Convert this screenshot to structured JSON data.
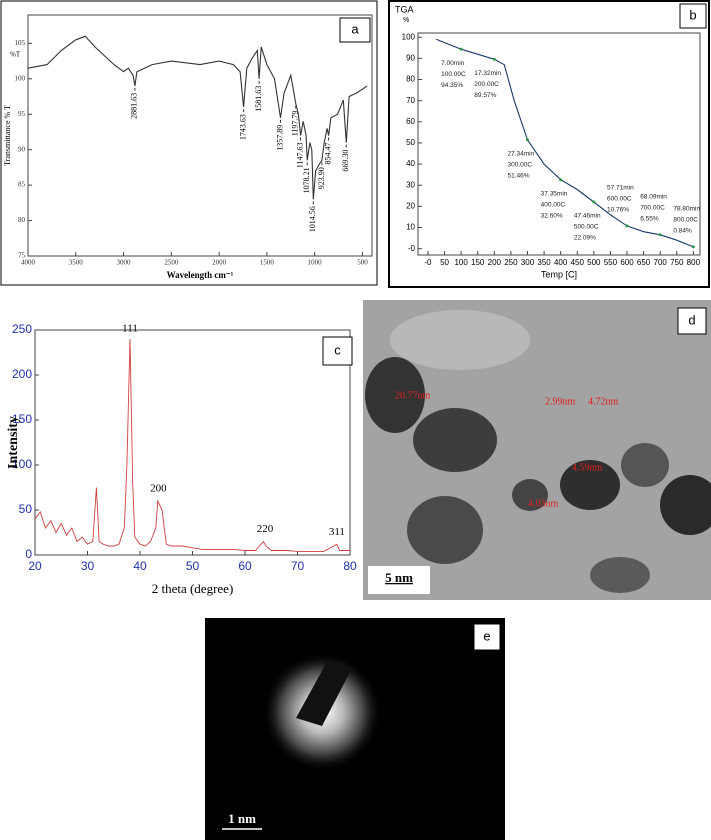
{
  "chart_data": [
    {
      "type": "line",
      "panel_label": "a",
      "y_unit": "%T",
      "x_label": "Wavelength cm⁻¹",
      "y_label": "Transmittance % T",
      "xlim": [
        4000,
        400
      ],
      "xticks": [
        4000,
        3500,
        3000,
        2500,
        2000,
        1500,
        1000,
        500
      ],
      "ylim": [
        75,
        109
      ],
      "yticks": [
        75,
        80,
        85,
        90,
        95,
        100,
        105
      ],
      "color": "#333333",
      "x": [
        4000,
        3800,
        3650,
        3500,
        3400,
        3300,
        3100,
        3000,
        2950,
        2900,
        2881.63,
        2860,
        2700,
        2500,
        2200,
        2000,
        1850,
        1780,
        1743.63,
        1710,
        1650,
        1600,
        1581.63,
        1560,
        1500,
        1420,
        1357.89,
        1320,
        1250,
        1197.79,
        1170,
        1147.63,
        1120,
        1090,
        1078.21,
        1050,
        1030,
        1014.56,
        990,
        950,
        923.9,
        900,
        870,
        854.47,
        830,
        760,
        700,
        669.3,
        640,
        560,
        450
      ],
      "values": [
        101.5,
        102,
        104,
        105.5,
        106,
        104.5,
        102,
        101,
        101.5,
        100.5,
        99,
        101,
        102,
        102.5,
        102,
        102.5,
        102,
        101,
        96,
        101.5,
        103,
        104,
        100,
        104.5,
        102,
        100,
        94.5,
        98,
        100.5,
        96.5,
        95,
        92,
        94,
        92,
        88.5,
        91,
        90,
        83,
        87,
        88,
        88.5,
        91,
        93,
        92,
        94.5,
        95,
        97,
        91,
        97.5,
        98,
        99
      ],
      "peaks": [
        {
          "value": 2881.63,
          "label": "2881.63"
        },
        {
          "value": 1743.63,
          "label": "1743.63"
        },
        {
          "value": 1581.63,
          "label": "1581.63"
        },
        {
          "value": 1357.89,
          "label": "1357.89"
        },
        {
          "value": 1197.79,
          "label": "1197.79"
        },
        {
          "value": 1147.63,
          "label": "1147.63"
        },
        {
          "value": 1078.21,
          "label": "1078.21"
        },
        {
          "value": 1014.56,
          "label": "1014.56"
        },
        {
          "value": 923.9,
          "label": "923.90"
        },
        {
          "value": 854.47,
          "label": "854.47"
        },
        {
          "value": 669.3,
          "label": "669.30"
        }
      ]
    },
    {
      "type": "line",
      "panel_label": "b",
      "title": "TGA",
      "y_unit": "%",
      "x_label": "Temp [C]",
      "xlim": [
        -30,
        820
      ],
      "xticks": [
        {
          "value": 0,
          "label": "-0"
        },
        50,
        100,
        150,
        200,
        250,
        300,
        350,
        400,
        450,
        500,
        550,
        600,
        650,
        700,
        750,
        800
      ],
      "ylim": [
        -3,
        102
      ],
      "yticks": [
        {
          "value": 0,
          "label": "-0"
        },
        10,
        20,
        30,
        40,
        50,
        60,
        70,
        80,
        90,
        100
      ],
      "color": "#1a3a6a",
      "x": [
        25,
        100,
        200,
        230,
        260,
        300,
        350,
        400,
        450,
        500,
        550,
        600,
        650,
        700,
        750,
        800
      ],
      "values": [
        99,
        94.35,
        89.57,
        87,
        70,
        51.46,
        40,
        32.6,
        28,
        22.09,
        16,
        10.76,
        8,
        6.55,
        4,
        0.84
      ],
      "annotations": [
        {
          "x": 100,
          "y": 94.35,
          "lines": [
            "7.00min",
            "100.00C",
            "94.35%"
          ]
        },
        {
          "x": 200,
          "y": 89.57,
          "lines": [
            "17.32min",
            "200.00C",
            "89.57%"
          ]
        },
        {
          "x": 300,
          "y": 51.46,
          "lines": [
            "27.34min",
            "300.00C",
            "51.46%"
          ]
        },
        {
          "x": 400,
          "y": 32.6,
          "lines": [
            "37.35min",
            "400.00C",
            "32.60%"
          ]
        },
        {
          "x": 500,
          "y": 22.09,
          "lines": [
            "47.46min",
            "500.00C",
            "22.09%"
          ]
        },
        {
          "x": 600,
          "y": 10.76,
          "lines": [
            "57.71min",
            "600.00C",
            "10.76%"
          ]
        },
        {
          "x": 700,
          "y": 6.55,
          "lines": [
            "68.09min",
            "700.00C",
            "6.55%"
          ]
        },
        {
          "x": 800,
          "y": 0.84,
          "lines": [
            "78.80min",
            "800.00C",
            "0.84%"
          ]
        }
      ]
    },
    {
      "type": "line",
      "panel_label": "c",
      "x_label": "2 theta (degree)",
      "y_label": "Intensity",
      "xlim": [
        20,
        80
      ],
      "xticks": [
        20,
        30,
        40,
        50,
        60,
        70,
        80
      ],
      "ylim": [
        0,
        250
      ],
      "yticks": [
        0,
        50,
        100,
        150,
        200,
        250
      ],
      "color": "#d04040",
      "x": [
        20,
        21,
        22,
        23,
        24,
        25,
        26,
        27,
        28,
        29,
        30,
        31,
        31.7,
        32.2,
        33,
        34,
        35,
        36,
        37,
        37.5,
        38.1,
        38.6,
        39,
        40,
        41,
        42,
        43,
        43.4,
        43.8,
        44.2,
        44.6,
        45,
        46,
        48,
        50,
        52,
        55,
        58,
        60,
        62,
        63.5,
        64,
        65,
        68,
        70,
        75,
        77.5,
        78,
        80
      ],
      "values": [
        40,
        48,
        30,
        38,
        25,
        35,
        22,
        30,
        15,
        20,
        12,
        15,
        75,
        15,
        12,
        10,
        10,
        12,
        30,
        100,
        240,
        80,
        20,
        12,
        10,
        15,
        30,
        60,
        55,
        50,
        30,
        12,
        10,
        10,
        8,
        6,
        6,
        6,
        5,
        5,
        15,
        10,
        5,
        5,
        4,
        4,
        12,
        5,
        5
      ],
      "peak_labels": [
        {
          "label": "111",
          "x": 38.1,
          "y": 240
        },
        {
          "label": "200",
          "x": 43.5,
          "y": 62
        },
        {
          "label": "220",
          "x": 63.8,
          "y": 17
        },
        {
          "label": "311",
          "x": 77.5,
          "y": 14
        }
      ]
    }
  ],
  "images": [
    {
      "panel_label": "d",
      "measurements": [
        "20.77nm",
        "2.99nm",
        "4.72nm",
        "4.59nm",
        "4.03nm"
      ],
      "scale_bar": "5 nm"
    },
    {
      "panel_label": "e",
      "scale_bar": "1 nm"
    }
  ]
}
